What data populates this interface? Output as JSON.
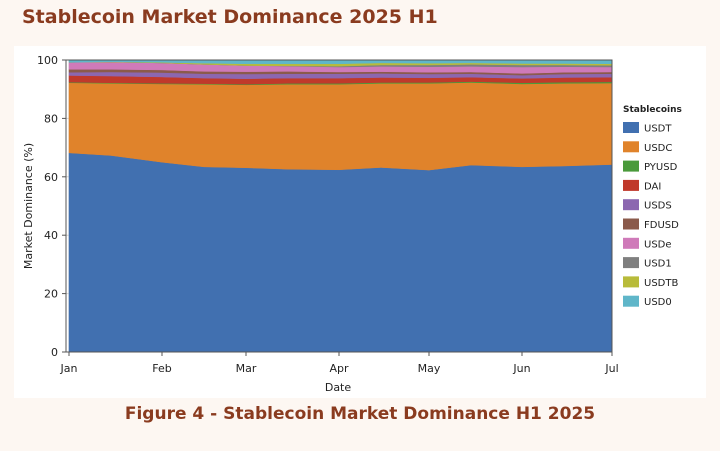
{
  "page": {
    "title": "Stablecoin Market Dominance 2025 H1",
    "caption": "Figure 4 - Stablecoin Market Dominance H1 2025"
  },
  "chart_data": {
    "type": "area",
    "stacked": true,
    "xlabel": "Date",
    "ylabel": "Market Dominance (%)",
    "ylim": [
      0,
      100
    ],
    "yticks": [
      0,
      20,
      40,
      60,
      80,
      100
    ],
    "xlim": [
      "2024-12-31",
      "2025-07-01"
    ],
    "x_ticks": [
      {
        "date": "2025-01-01",
        "label": "Jan"
      },
      {
        "date": "2025-02-01",
        "label": "Feb"
      },
      {
        "date": "2025-03-01",
        "label": "Mar"
      },
      {
        "date": "2025-04-01",
        "label": "Apr"
      },
      {
        "date": "2025-05-01",
        "label": "May"
      },
      {
        "date": "2025-06-01",
        "label": "Jun"
      },
      {
        "date": "2025-07-01",
        "label": "Jul"
      }
    ],
    "x": [
      "2025-01-01",
      "2025-01-15",
      "2025-02-01",
      "2025-02-15",
      "2025-03-01",
      "2025-03-15",
      "2025-04-01",
      "2025-04-15",
      "2025-05-01",
      "2025-05-15",
      "2025-06-01",
      "2025-06-15",
      "2025-07-01"
    ],
    "grid": true,
    "legend": {
      "title": "Stablecoins",
      "placement": "right"
    },
    "series": [
      {
        "name": "USDT",
        "color": "#4170b0",
        "values": [
          68.2,
          67.3,
          65.0,
          63.4,
          63.1,
          62.6,
          62.4,
          63.2,
          62.3,
          64.0,
          63.4,
          63.7,
          64.2
        ]
      },
      {
        "name": "USDC",
        "color": "#e0832b",
        "values": [
          24.0,
          24.7,
          26.8,
          28.3,
          28.4,
          29.1,
          29.3,
          28.8,
          29.7,
          28.3,
          28.4,
          28.3,
          27.9
        ]
      },
      {
        "name": "PYUSD",
        "color": "#4a9a3b",
        "values": [
          0.2,
          0.2,
          0.2,
          0.2,
          0.2,
          0.3,
          0.3,
          0.3,
          0.3,
          0.3,
          0.4,
          0.4,
          0.4
        ]
      },
      {
        "name": "DAI",
        "color": "#c0392b",
        "values": [
          2.3,
          2.3,
          2.2,
          1.9,
          1.9,
          1.8,
          1.8,
          1.7,
          1.6,
          1.5,
          1.5,
          1.6,
          1.6
        ]
      },
      {
        "name": "USDS",
        "color": "#8c67b0",
        "values": [
          1.1,
          1.4,
          1.5,
          1.5,
          1.6,
          1.5,
          1.5,
          1.4,
          1.3,
          1.2,
          1.1,
          1.2,
          1.2
        ]
      },
      {
        "name": "FDUSD",
        "color": "#8b5a4b",
        "values": [
          1.0,
          0.9,
          0.9,
          0.8,
          0.8,
          0.8,
          0.6,
          0.6,
          0.6,
          0.6,
          0.6,
          0.6,
          0.6
        ]
      },
      {
        "name": "USDe",
        "color": "#cf7ab9",
        "values": [
          2.4,
          2.5,
          2.4,
          2.4,
          2.1,
          1.8,
          1.7,
          1.8,
          1.9,
          1.9,
          2.2,
          1.9,
          1.7
        ]
      },
      {
        "name": "USD1",
        "color": "#7f7f7f",
        "values": [
          0.0,
          0.0,
          0.0,
          0.0,
          0.0,
          0.1,
          0.3,
          0.5,
          0.6,
          0.7,
          0.7,
          0.6,
          0.6
        ]
      },
      {
        "name": "USDTB",
        "color": "#b8bb3a",
        "values": [
          0.0,
          0.1,
          0.2,
          0.4,
          0.6,
          0.7,
          0.8,
          0.7,
          0.6,
          0.5,
          0.5,
          0.5,
          0.5
        ]
      },
      {
        "name": "USD0",
        "color": "#5fb6c9",
        "values": [
          0.8,
          0.6,
          0.8,
          1.1,
          1.3,
          1.3,
          1.3,
          1.0,
          1.1,
          1.0,
          1.2,
          1.2,
          1.3
        ]
      }
    ]
  }
}
